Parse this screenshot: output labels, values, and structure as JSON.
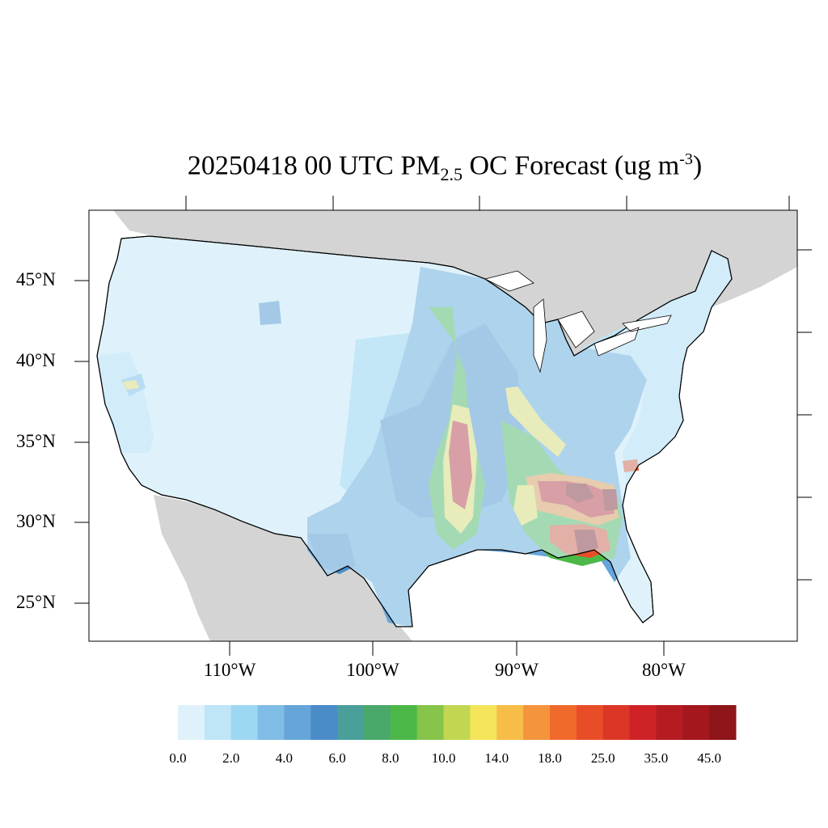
{
  "title": {
    "prefix": "20250418 00 UTC PM",
    "subscript": "2.5",
    "middle": " OC Forecast (ug m",
    "superscript": "-3",
    "suffix": ")"
  },
  "lat_labels": [
    "45°N",
    "40°N",
    "35°N",
    "30°N",
    "25°N"
  ],
  "lon_labels": [
    "110°W",
    "100°W",
    "90°W",
    "80°W"
  ],
  "colorbar": {
    "labels": [
      "0.0",
      "2.0",
      "4.0",
      "6.0",
      "8.0",
      "10.0",
      "14.0",
      "18.0",
      "25.0",
      "35.0",
      "45.0"
    ],
    "colors": [
      "#dff2fb",
      "#bfe5f7",
      "#9dd7f3",
      "#80bde6",
      "#65a5d9",
      "#4a8cc8",
      "#4a9f9a",
      "#4aa86a",
      "#4cb848",
      "#86c44a",
      "#c2d652",
      "#f5e55a",
      "#f7bd48",
      "#f4943c",
      "#f06a2c",
      "#e84d28",
      "#dc3726",
      "#cf2227",
      "#b51c22",
      "#a3171d",
      "#8e1519"
    ]
  },
  "colors": {
    "land_outside": "#d4d4d4",
    "low_west": "#dff2fb",
    "mid": "#65a5d9",
    "high": "#cf2227"
  }
}
